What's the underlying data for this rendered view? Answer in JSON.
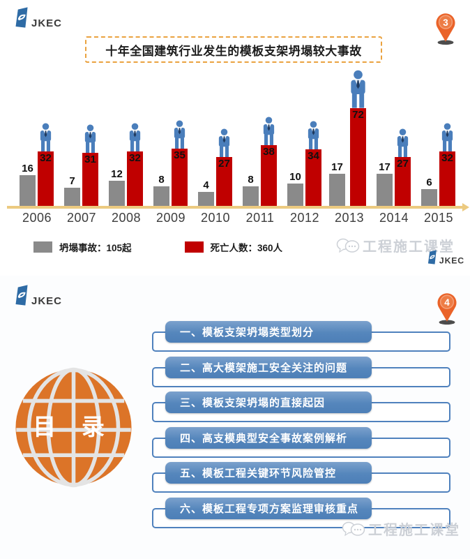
{
  "brand": {
    "logo_text": "JKEC",
    "logo_blue": "#2e6ba5"
  },
  "chart_data": {
    "type": "bar",
    "title": "十年全国建筑行业发生的模板支架坍塌较大事故",
    "categories": [
      "2006",
      "2007",
      "2008",
      "2009",
      "2010",
      "2011",
      "2012",
      "2013",
      "2014",
      "2015"
    ],
    "series": [
      {
        "name": "坍塌事故",
        "color": "#8a8a8a",
        "values": [
          16,
          7,
          12,
          8,
          4,
          8,
          10,
          17,
          17,
          6
        ]
      },
      {
        "name": "死亡人数",
        "color": "#c00000",
        "values": [
          32,
          31,
          32,
          35,
          27,
          38,
          34,
          72,
          27,
          32
        ]
      }
    ],
    "legend": [
      {
        "label": "坍塌事故：105起",
        "color": "#8a8a8a"
      },
      {
        "label": "死亡人数：360人",
        "color": "#c00000"
      }
    ],
    "legend_position": "bottom",
    "grid": false,
    "axis_color": "#ecca80",
    "annotations": "blue person icon standing on each red bar"
  },
  "slide1": {
    "page_number": "3",
    "title": "十年全国建筑行业发生的模板支架坍塌较大事故",
    "watermark": "工程施工课堂"
  },
  "slide2": {
    "page_number": "4",
    "globe_label": "目 录",
    "globe_color": "#dc7428",
    "toc": [
      "一、模板支架坍塌类型划分",
      "二、高大模架施工安全关注的问题",
      "三、模板支架坍塌的直接起因",
      "四、高支模典型安全事故案例解析",
      "五、模板工程关键环节风险管控",
      "六、模板工程专项方案监理审核重点"
    ],
    "watermark": "工程施工课堂"
  }
}
